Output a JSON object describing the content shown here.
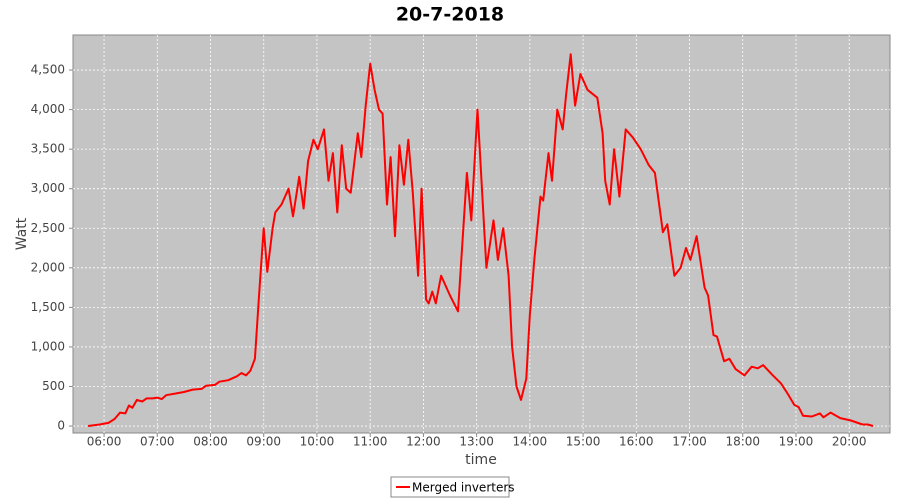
{
  "chart_data": {
    "type": "line",
    "title": "20-7-2018",
    "x_label": "time",
    "y_label": "Watt",
    "x": [
      "05:42",
      "05:55",
      "06:05",
      "06:12",
      "06:18",
      "06:24",
      "06:28",
      "06:32",
      "06:37",
      "06:43",
      "06:48",
      "06:55",
      "07:00",
      "07:05",
      "07:10",
      "07:20",
      "07:30",
      "07:40",
      "07:50",
      "07:55",
      "08:05",
      "08:10",
      "08:20",
      "08:30",
      "08:35",
      "08:40",
      "08:45",
      "08:50",
      "08:55",
      "09:00",
      "09:04",
      "09:10",
      "09:13",
      "09:20",
      "09:28",
      "09:33",
      "09:40",
      "09:45",
      "09:50",
      "09:56",
      "10:01",
      "10:08",
      "10:13",
      "10:18",
      "10:23",
      "10:28",
      "10:33",
      "10:38",
      "10:46",
      "10:50",
      "10:55",
      "11:00",
      "11:05",
      "11:10",
      "11:14",
      "11:19",
      "11:23",
      "11:28",
      "11:33",
      "11:38",
      "11:43",
      "11:48",
      "11:54",
      "11:58",
      "12:03",
      "12:06",
      "12:10",
      "12:14",
      "12:20",
      "12:30",
      "12:39",
      "12:49",
      "12:54",
      "13:01",
      "13:11",
      "13:19",
      "13:24",
      "13:30",
      "13:36",
      "13:40",
      "13:45",
      "13:50",
      "13:56",
      "14:00",
      "14:05",
      "14:12",
      "14:15",
      "14:21",
      "14:25",
      "14:31",
      "14:37",
      "14:41",
      "14:46",
      "14:51",
      "14:57",
      "15:05",
      "15:16",
      "15:22",
      "15:25",
      "15:30",
      "15:35",
      "15:41",
      "15:48",
      "15:56",
      "16:05",
      "16:14",
      "16:21",
      "16:30",
      "16:35",
      "16:43",
      "16:50",
      "16:56",
      "17:01",
      "17:08",
      "17:17",
      "17:21",
      "17:27",
      "17:31",
      "17:39",
      "17:45",
      "17:52",
      "18:02",
      "18:10",
      "18:17",
      "18:23",
      "18:34",
      "18:43",
      "18:50",
      "18:58",
      "19:03",
      "19:08",
      "19:18",
      "19:27",
      "19:31",
      "19:39",
      "19:50",
      "20:02",
      "20:15",
      "20:21",
      "20:27"
    ],
    "series": [
      {
        "name": "Merged inverters",
        "color": "#ff0000",
        "values": [
          0,
          20,
          40,
          90,
          170,
          160,
          260,
          230,
          330,
          310,
          350,
          350,
          360,
          340,
          390,
          410,
          430,
          460,
          470,
          510,
          520,
          560,
          580,
          630,
          670,
          640,
          700,
          850,
          1700,
          2500,
          1950,
          2500,
          2700,
          2800,
          3000,
          2650,
          3150,
          2750,
          3350,
          3620,
          3500,
          3750,
          3100,
          3450,
          2700,
          3550,
          3000,
          2950,
          3700,
          3400,
          4050,
          4580,
          4250,
          4000,
          3950,
          2800,
          3400,
          2400,
          3550,
          3050,
          3620,
          2950,
          1900,
          3000,
          1600,
          1550,
          1700,
          1550,
          1900,
          1650,
          1450,
          3200,
          2600,
          4000,
          2000,
          2600,
          2100,
          2500,
          1900,
          1000,
          500,
          330,
          600,
          1400,
          2100,
          2900,
          2850,
          3450,
          3100,
          4000,
          3750,
          4200,
          4700,
          4050,
          4450,
          4250,
          4150,
          3700,
          3100,
          2800,
          3500,
          2900,
          3750,
          3650,
          3500,
          3300,
          3200,
          2450,
          2550,
          1900,
          2000,
          2250,
          2100,
          2400,
          1750,
          1650,
          1150,
          1130,
          820,
          850,
          720,
          640,
          750,
          730,
          770,
          640,
          540,
          420,
          270,
          240,
          130,
          120,
          160,
          110,
          170,
          100,
          70,
          20,
          20,
          0
        ]
      }
    ],
    "xlim": [
      "05:25",
      "20:46"
    ],
    "xticks": [
      "06:00",
      "07:00",
      "08:00",
      "09:00",
      "10:00",
      "11:00",
      "12:00",
      "13:00",
      "14:00",
      "15:00",
      "16:00",
      "17:00",
      "18:00",
      "19:00",
      "20:00"
    ],
    "ylim": [
      -88,
      4943
    ],
    "yticks": [
      0,
      500,
      {
        "value": 1000,
        "label": "1,000"
      },
      {
        "value": 1500,
        "label": "1,500"
      },
      {
        "value": 2000,
        "label": "2,000"
      },
      {
        "value": 2500,
        "label": "2,500"
      },
      {
        "value": 3000,
        "label": "3,000"
      },
      {
        "value": 3500,
        "label": "3,500"
      },
      {
        "value": 4000,
        "label": "4,000"
      },
      {
        "value": 4500,
        "label": "4,500"
      }
    ],
    "grid": true,
    "legend": "bottom"
  }
}
